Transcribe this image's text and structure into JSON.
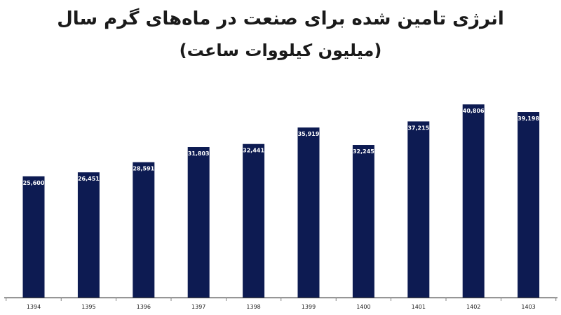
{
  "chart_data": {
    "type": "bar",
    "title": "انرژی تامین شده برای صنعت در ماه‌های گرم سال",
    "subtitle": "(میلیون کیلووات ساعت)",
    "categories": [
      "1394",
      "1395",
      "1396",
      "1397",
      "1398",
      "1399",
      "1400",
      "1401",
      "1402",
      "1403"
    ],
    "values": [
      25600,
      26451,
      28591,
      31803,
      32441,
      35919,
      32245,
      37215,
      40806,
      39198
    ],
    "value_labels": [
      "25,600",
      "26,451",
      "28,591",
      "31,803",
      "32,441",
      "35,919",
      "32,245",
      "37,215",
      "40,806",
      "39,198"
    ],
    "bar_color": "#0d1b52",
    "label_color": "#ffffff",
    "grid": false
  }
}
